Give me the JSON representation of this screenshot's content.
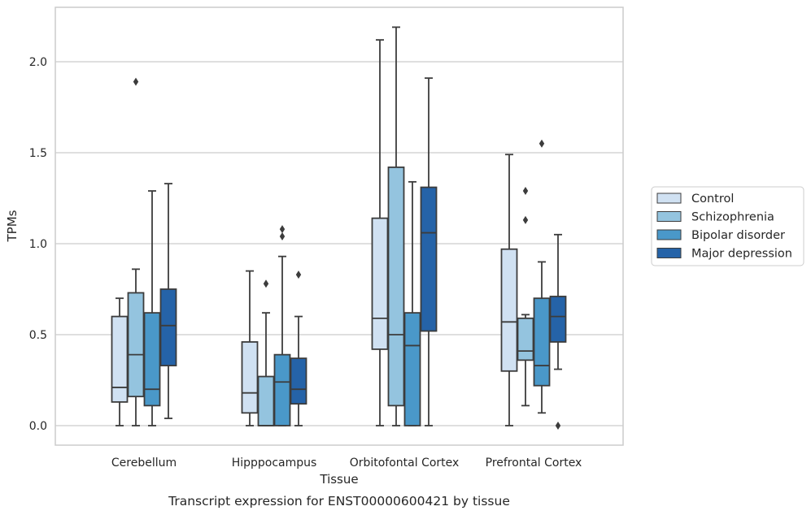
{
  "caption": "Transcript expression for ENST00000600421 by tissue",
  "chart_data": {
    "type": "box",
    "xlabel": "Tissue",
    "ylabel": "TPMs",
    "ylim": [
      -0.1,
      2.3
    ],
    "yticks": [
      "0.0",
      "0.5",
      "1.0",
      "1.5",
      "2.0"
    ],
    "grid": true,
    "legend_position": "right",
    "categories": [
      "Cerebellum",
      "Hipppocampus",
      "Orbitofontal Cortex",
      "Prefrontal Cortex"
    ],
    "series": [
      {
        "name": "Control",
        "color": "#d0e1f2",
        "boxes": [
          {
            "min": 0.0,
            "q1": 0.13,
            "median": 0.21,
            "q3": 0.6,
            "max": 0.7,
            "outliers": []
          },
          {
            "min": 0.0,
            "q1": 0.07,
            "median": 0.18,
            "q3": 0.46,
            "max": 0.85,
            "outliers": []
          },
          {
            "min": 0.0,
            "q1": 0.42,
            "median": 0.59,
            "q3": 1.14,
            "max": 2.12,
            "outliers": []
          },
          {
            "min": 0.0,
            "q1": 0.3,
            "median": 0.57,
            "q3": 0.97,
            "max": 1.49,
            "outliers": []
          }
        ]
      },
      {
        "name": "Schizophrenia",
        "color": "#94c4df",
        "boxes": [
          {
            "min": 0.0,
            "q1": 0.16,
            "median": 0.39,
            "q3": 0.73,
            "max": 0.86,
            "outliers": [
              1.89
            ]
          },
          {
            "min": 0.0,
            "q1": 0.0,
            "median": 0.0,
            "q3": 0.27,
            "max": 0.62,
            "outliers": [
              0.78
            ]
          },
          {
            "min": 0.0,
            "q1": 0.11,
            "median": 0.5,
            "q3": 1.42,
            "max": 2.19,
            "outliers": []
          },
          {
            "min": 0.11,
            "q1": 0.36,
            "median": 0.41,
            "q3": 0.59,
            "max": 0.61,
            "outliers": [
              1.13,
              1.29
            ]
          }
        ]
      },
      {
        "name": "Bipolar disorder",
        "color": "#4a98c9",
        "boxes": [
          {
            "min": 0.0,
            "q1": 0.11,
            "median": 0.2,
            "q3": 0.62,
            "max": 1.29,
            "outliers": []
          },
          {
            "min": 0.0,
            "q1": 0.0,
            "median": 0.24,
            "q3": 0.39,
            "max": 0.93,
            "outliers": [
              1.04,
              1.08
            ]
          },
          {
            "min": 0.0,
            "q1": 0.0,
            "median": 0.44,
            "q3": 0.62,
            "max": 1.34,
            "outliers": []
          },
          {
            "min": 0.07,
            "q1": 0.22,
            "median": 0.33,
            "q3": 0.7,
            "max": 0.9,
            "outliers": [
              1.55
            ]
          }
        ]
      },
      {
        "name": "Major depression",
        "color": "#2563a8",
        "boxes": [
          {
            "min": 0.04,
            "q1": 0.33,
            "median": 0.55,
            "q3": 0.75,
            "max": 1.33,
            "outliers": []
          },
          {
            "min": 0.0,
            "q1": 0.12,
            "median": 0.2,
            "q3": 0.37,
            "max": 0.6,
            "outliers": [
              0.83
            ]
          },
          {
            "min": 0.0,
            "q1": 0.52,
            "median": 1.06,
            "q3": 1.31,
            "max": 1.91,
            "outliers": []
          },
          {
            "min": 0.31,
            "q1": 0.46,
            "median": 0.6,
            "q3": 0.71,
            "max": 1.05,
            "outliers": [
              0.0
            ]
          }
        ]
      }
    ]
  }
}
